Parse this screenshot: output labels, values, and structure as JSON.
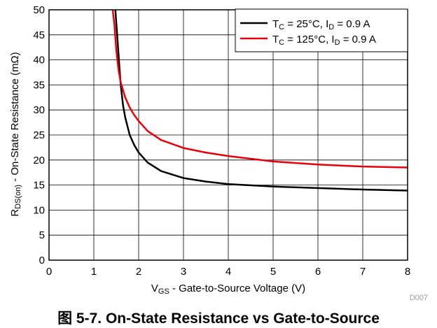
{
  "chart_data": {
    "type": "line",
    "xlabel_main": "V",
    "xlabel_sub": "GS",
    "xlabel_rest": " - Gate-to-Source Voltage (V)",
    "ylabel_main": "R",
    "ylabel_sub": "DS(on)",
    "ylabel_rest": " - On-State Resistance (mΩ)",
    "xlim": [
      0,
      8
    ],
    "ylim": [
      0,
      50
    ],
    "xticks": [
      "0",
      "1",
      "2",
      "3",
      "4",
      "5",
      "6",
      "7",
      "8"
    ],
    "yticks": [
      "0",
      "5",
      "10",
      "15",
      "20",
      "25",
      "30",
      "35",
      "40",
      "45",
      "50"
    ],
    "grid": true,
    "legend_position": "top-right",
    "figure_id": "D007",
    "series": [
      {
        "legend": {
          "t": "T",
          "tsub": "C",
          "tval": " = 25°C, I",
          "isub": "D",
          "ival": " = 0.9 A"
        },
        "color": "#000000",
        "x": [
          1.48,
          1.52,
          1.56,
          1.6,
          1.65,
          1.7,
          1.8,
          1.9,
          2.0,
          2.2,
          2.5,
          3.0,
          3.5,
          4.0,
          5.0,
          6.0,
          7.0,
          8.0
        ],
        "y": [
          50,
          45,
          40,
          35,
          31,
          28.5,
          25,
          23,
          21.5,
          19.5,
          17.8,
          16.4,
          15.7,
          15.2,
          14.7,
          14.4,
          14.1,
          13.9
        ]
      },
      {
        "legend": {
          "t": "T",
          "tsub": "C",
          "tval": " = 125°C, I",
          "isub": "D",
          "ival": " = 0.9 A"
        },
        "color": "#e8000b",
        "x": [
          1.42,
          1.46,
          1.5,
          1.55,
          1.6,
          1.7,
          1.8,
          1.9,
          2.0,
          2.2,
          2.5,
          3.0,
          3.5,
          4.0,
          5.0,
          6.0,
          7.0,
          8.0
        ],
        "y": [
          50,
          47,
          42,
          38,
          35.5,
          32.5,
          30.5,
          29,
          27.8,
          25.8,
          24,
          22.4,
          21.5,
          20.8,
          19.7,
          19.1,
          18.7,
          18.5
        ]
      }
    ]
  },
  "caption": "图 5-7. On-State Resistance vs Gate-to-Source"
}
